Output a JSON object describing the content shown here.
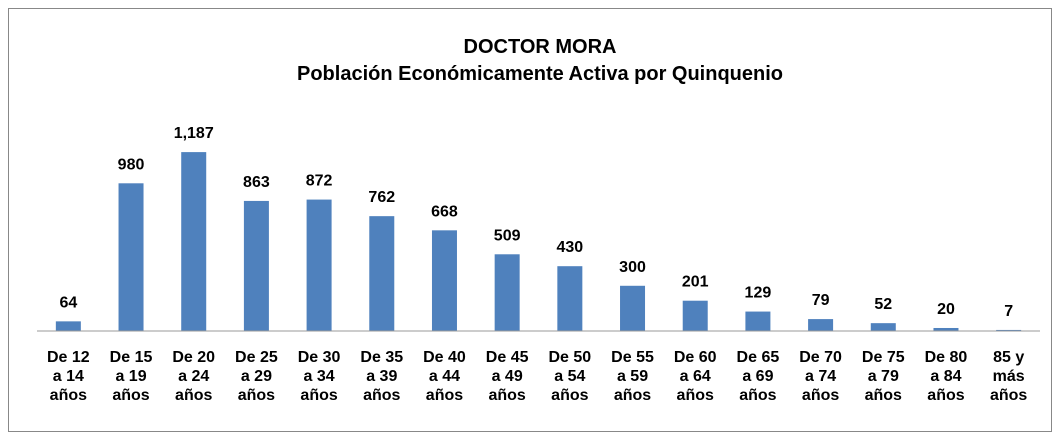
{
  "chart_data": {
    "type": "bar",
    "title": "DOCTOR MORA",
    "subtitle": "Población Económicamente Activa por Quinquenio",
    "categories": [
      "De 12\na 14\naños",
      "De 15\na 19\naños",
      "De 20\na 24\naños",
      "De 25\na 29\naños",
      "De 30\na 34\naños",
      "De 35\na 39\naños",
      "De 40\na 44\naños",
      "De 45\na 49\naños",
      "De 50\na 54\naños",
      "De 55\na 59\naños",
      "De 60\na 64\naños",
      "De 65\na 69\naños",
      "De 70\na 74\naños",
      "De 75\na 79\naños",
      "De 80\na 84\naños",
      "85 y\nmás\naños"
    ],
    "values": [
      64,
      980,
      1187,
      863,
      872,
      762,
      668,
      509,
      430,
      300,
      201,
      129,
      79,
      52,
      20,
      7
    ],
    "value_labels": [
      "64",
      "980",
      "1,187",
      "863",
      "872",
      "762",
      "668",
      "509",
      "430",
      "300",
      "201",
      "129",
      "79",
      "52",
      "20",
      "7"
    ],
    "color": "#4f81bd",
    "ylim": [
      0,
      1400
    ]
  }
}
